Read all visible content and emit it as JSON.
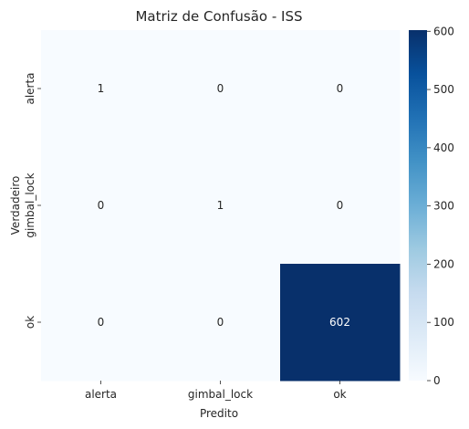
{
  "chart_data": {
    "type": "heatmap",
    "title": "Matriz de Confusão - ISS",
    "xlabel": "Predito",
    "ylabel": "Verdadeiro",
    "x_categories": [
      "alerta",
      "gimbal_lock",
      "ok"
    ],
    "y_categories": [
      "alerta",
      "gimbal_lock",
      "ok"
    ],
    "values": [
      [
        1,
        0,
        0
      ],
      [
        0,
        1,
        0
      ],
      [
        0,
        0,
        602
      ]
    ],
    "colormap": "Blues",
    "colorbar": {
      "range": [
        0,
        602
      ],
      "ticks": [
        0,
        100,
        200,
        300,
        400,
        500,
        600
      ]
    },
    "grid": false,
    "legend": "colorbar-right"
  },
  "colors": {
    "low": "#f7fbff",
    "high": "#08306b",
    "text_dark": "#262626",
    "text_light": "#ffffff"
  }
}
